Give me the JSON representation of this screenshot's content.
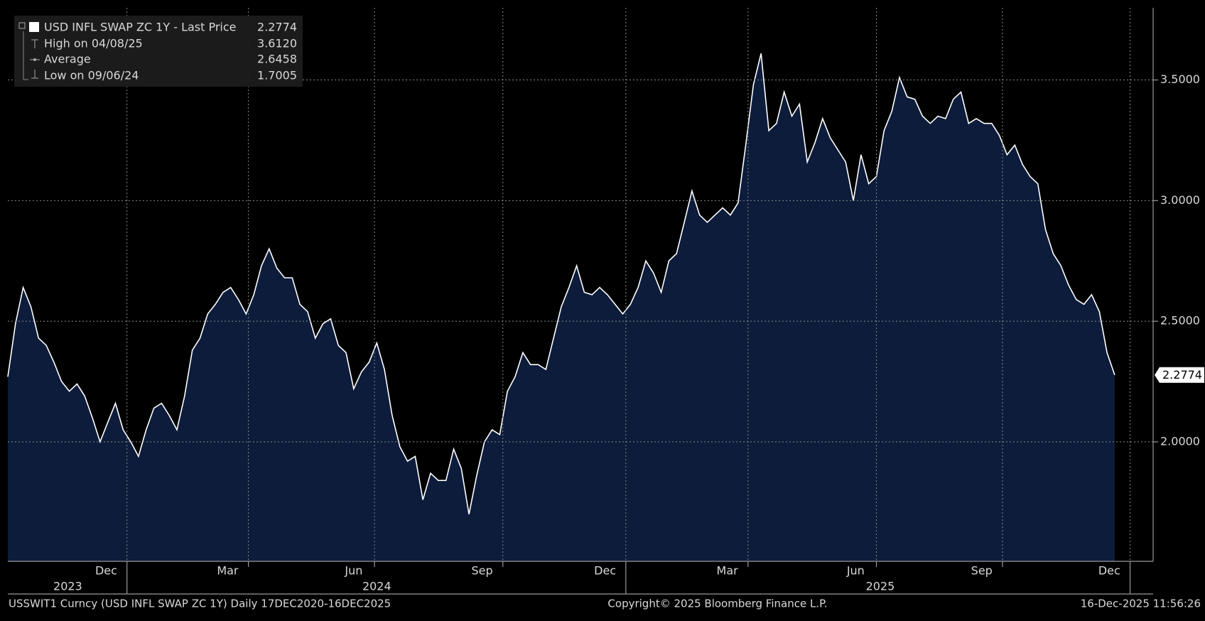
{
  "chart_data": {
    "type": "area",
    "series": [
      {
        "name": "USD INFL SWAP ZC 1Y - Last Price",
        "color": "#ffffff",
        "fill": "#0d1c3b",
        "values": [
          2.27,
          2.49,
          2.64,
          2.56,
          2.43,
          2.4,
          2.33,
          2.25,
          2.21,
          2.24,
          2.19,
          2.1,
          2.0,
          2.08,
          2.16,
          2.05,
          2.0,
          1.94,
          2.05,
          2.14,
          2.16,
          2.11,
          2.05,
          2.19,
          2.38,
          2.43,
          2.53,
          2.57,
          2.62,
          2.64,
          2.59,
          2.53,
          2.61,
          2.73,
          2.8,
          2.72,
          2.68,
          2.68,
          2.57,
          2.54,
          2.43,
          2.49,
          2.51,
          2.4,
          2.37,
          2.22,
          2.29,
          2.33,
          2.41,
          2.3,
          2.11,
          1.98,
          1.92,
          1.94,
          1.76,
          1.87,
          1.84,
          1.84,
          1.97,
          1.89,
          1.7,
          1.86,
          2.0,
          2.05,
          2.03,
          2.21,
          2.27,
          2.37,
          2.32,
          2.32,
          2.3,
          2.43,
          2.56,
          2.64,
          2.73,
          2.62,
          2.61,
          2.64,
          2.61,
          2.57,
          2.53,
          2.57,
          2.64,
          2.75,
          2.7,
          2.62,
          2.75,
          2.78,
          2.91,
          3.04,
          2.94,
          2.91,
          2.94,
          2.97,
          2.94,
          2.99,
          3.23,
          3.48,
          3.61,
          3.29,
          3.32,
          3.45,
          3.35,
          3.4,
          3.16,
          3.24,
          3.34,
          3.26,
          3.21,
          3.16,
          3.0,
          3.19,
          3.07,
          3.1,
          3.29,
          3.37,
          3.51,
          3.43,
          3.42,
          3.35,
          3.32,
          3.35,
          3.34,
          3.42,
          3.45,
          3.32,
          3.34,
          3.32,
          3.32,
          3.27,
          3.19,
          3.23,
          3.15,
          3.1,
          3.07,
          2.88,
          2.78,
          2.73,
          2.65,
          2.59,
          2.57,
          2.61,
          2.54,
          2.37,
          2.2774
        ]
      }
    ],
    "last_price": {
      "value": 2.2774,
      "label": "2.2774"
    },
    "stats": [
      {
        "label": "High on 04/08/25",
        "value": 3.612,
        "value_label": "3.6120"
      },
      {
        "label": "Average",
        "value": 2.6458,
        "value_label": "2.6458"
      },
      {
        "label": "Low on 09/06/24",
        "value": 1.7005,
        "value_label": "1.7005"
      }
    ],
    "xlim": [
      0,
      149
    ],
    "xticks": [
      {
        "value": 12.8,
        "label": "Dec"
      },
      {
        "value": 28.6,
        "label": "Mar"
      },
      {
        "value": 45,
        "label": "Jun"
      },
      {
        "value": 61.7,
        "label": "Sep"
      },
      {
        "value": 77.7,
        "label": "Dec"
      },
      {
        "value": 93.6,
        "label": "Mar"
      },
      {
        "value": 110.3,
        "label": "Jun"
      },
      {
        "value": 126.7,
        "label": "Sep"
      },
      {
        "value": 143.3,
        "label": "Dec"
      }
    ],
    "year_ticks": [
      {
        "value": 7.8,
        "label": "2023"
      },
      {
        "value": 48,
        "label": "2024"
      },
      {
        "value": 113.5,
        "label": "2025"
      }
    ],
    "ylim": [
      1.505,
      3.799
    ],
    "yticks": [
      {
        "value": 2.0,
        "label": "2.0000"
      },
      {
        "value": 2.5,
        "label": "2.5000"
      },
      {
        "value": 3.0,
        "label": "3.0000"
      },
      {
        "value": 3.5,
        "label": "3.5000"
      }
    ],
    "grid": true,
    "footer_left": "USSWIT1 Curncy (USD INFL SWAP ZC 1Y) Daily 17DEC2020-16DEC2025",
    "footer_center": "Copyright© 2025 Bloomberg Finance L.P.",
    "footer_right": "16-Dec-2025 11:56:26"
  }
}
